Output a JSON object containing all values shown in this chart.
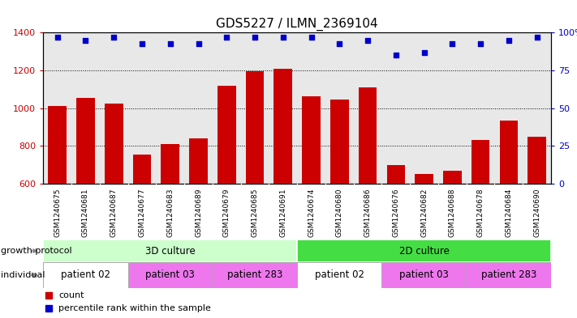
{
  "title": "GDS5227 / ILMN_2369104",
  "samples": [
    "GSM1240675",
    "GSM1240681",
    "GSM1240687",
    "GSM1240677",
    "GSM1240683",
    "GSM1240689",
    "GSM1240679",
    "GSM1240685",
    "GSM1240691",
    "GSM1240674",
    "GSM1240680",
    "GSM1240686",
    "GSM1240676",
    "GSM1240682",
    "GSM1240688",
    "GSM1240678",
    "GSM1240684",
    "GSM1240690"
  ],
  "counts": [
    1010,
    1055,
    1025,
    755,
    810,
    840,
    1120,
    1195,
    1210,
    1065,
    1045,
    1110,
    700,
    650,
    670,
    830,
    935,
    850
  ],
  "percentile_ranks": [
    97,
    95,
    97,
    93,
    93,
    93,
    97,
    97,
    97,
    97,
    93,
    95,
    85,
    87,
    93,
    93,
    95,
    97
  ],
  "bar_color": "#cc0000",
  "dot_color": "#0000cc",
  "ylim_left": [
    600,
    1400
  ],
  "yticks_left": [
    600,
    800,
    1000,
    1200,
    1400
  ],
  "ylim_right": [
    0,
    100
  ],
  "yticks_right": [
    0,
    25,
    50,
    75,
    100
  ],
  "grid_values": [
    800,
    1000,
    1200
  ],
  "growth_protocol_groups": [
    {
      "name": "3D culture",
      "start": 0,
      "end": 9,
      "color": "#ccffcc"
    },
    {
      "name": "2D culture",
      "start": 9,
      "end": 18,
      "color": "#44dd44"
    }
  ],
  "individual_groups": [
    {
      "name": "patient 02",
      "start": 0,
      "end": 3,
      "color": "#ffffff"
    },
    {
      "name": "patient 03",
      "start": 3,
      "end": 6,
      "color": "#ee77ee"
    },
    {
      "name": "patient 283",
      "start": 6,
      "end": 9,
      "color": "#ee77ee"
    },
    {
      "name": "patient 02",
      "start": 9,
      "end": 12,
      "color": "#ffffff"
    },
    {
      "name": "patient 03",
      "start": 12,
      "end": 15,
      "color": "#ee77ee"
    },
    {
      "name": "patient 283",
      "start": 15,
      "end": 18,
      "color": "#ee77ee"
    }
  ],
  "growth_protocol_label": "growth protocol",
  "individual_label": "individual",
  "legend_count_label": "count",
  "legend_pct_label": "percentile rank within the sample",
  "bar_width": 0.65,
  "plot_bg": "#e8e8e8",
  "xtick_bg": "#d0d0d0",
  "title_fontsize": 11,
  "tick_fontsize": 8,
  "sample_fontsize": 6.5,
  "annot_fontsize": 8.5,
  "legend_fontsize": 8
}
